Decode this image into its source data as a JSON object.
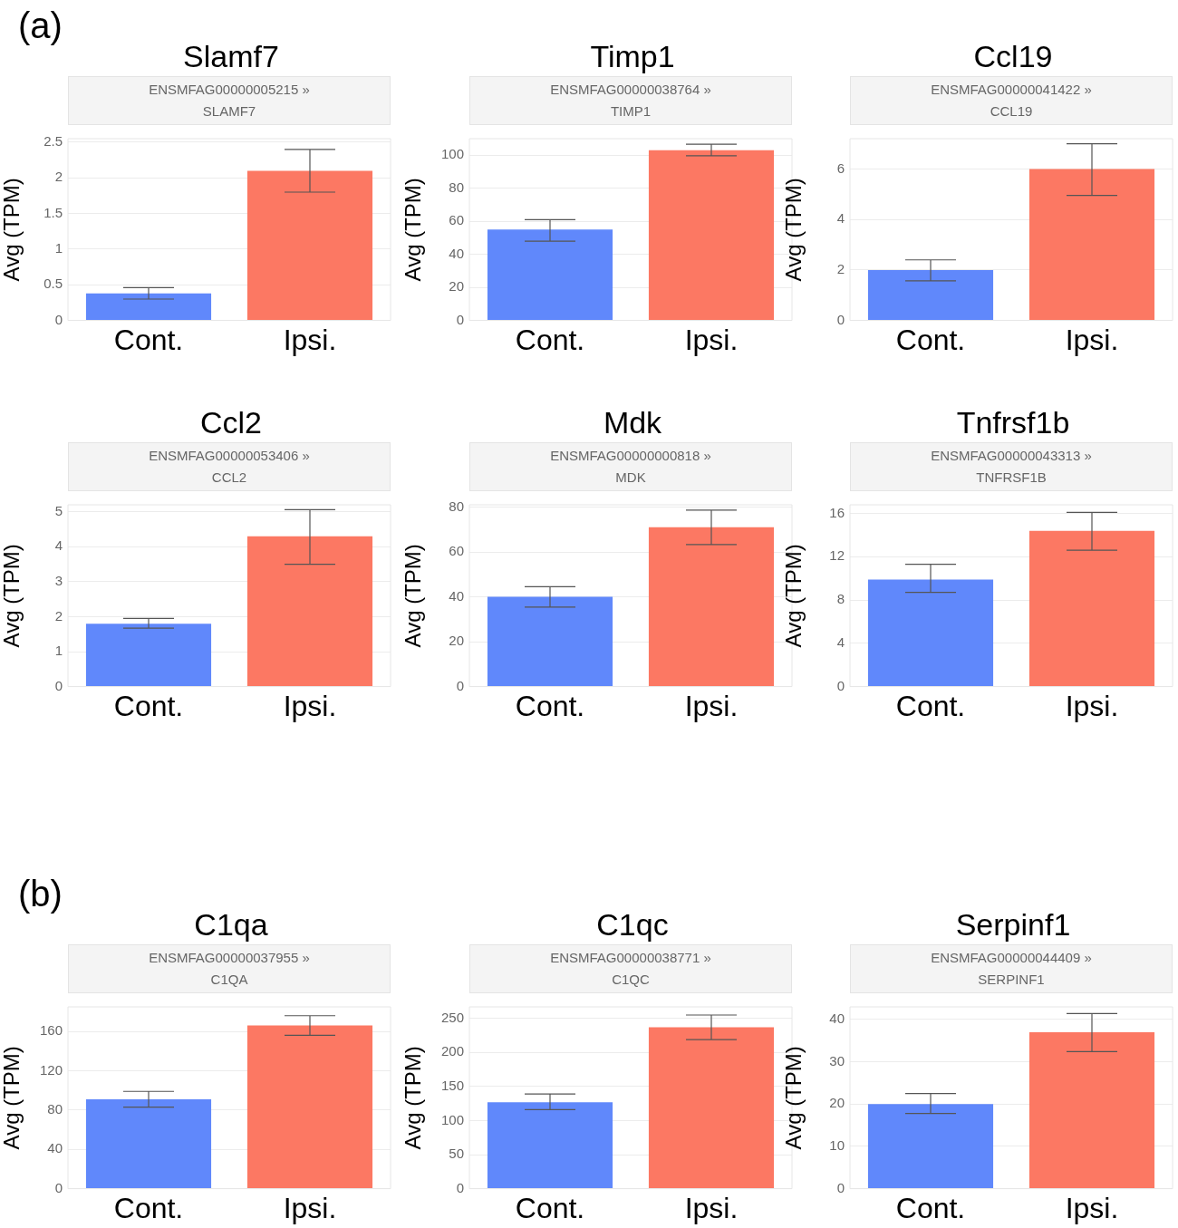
{
  "chart_data": [
    {
      "type": "bar",
      "title": "Slamf7",
      "subtitle": "ENSMFAG00000005215 »\nSLAMF7",
      "ylabel": "Avg (TPM)",
      "annotations": [
        "(a)"
      ],
      "categories": [
        "Cont.",
        "Ipsi."
      ],
      "values": [
        0.38,
        2.1
      ],
      "errors": [
        [
          0.3,
          0.46
        ],
        [
          1.8,
          2.4
        ]
      ],
      "colors": [
        "#6088fb",
        "#fc7863"
      ],
      "ylim": [
        0,
        2.55
      ],
      "yticks": [
        0,
        0.5,
        1,
        1.5,
        2,
        2.5
      ],
      "grid": "y",
      "legend": false
    },
    {
      "type": "bar",
      "title": "Timp1",
      "subtitle": "ENSMFAG00000038764 »\nTIMP1",
      "ylabel": "Avg (TPM)",
      "categories": [
        "Cont.",
        "Ipsi."
      ],
      "values": [
        55,
        103
      ],
      "errors": [
        [
          48,
          61
        ],
        [
          99.6,
          106.6
        ]
      ],
      "colors": [
        "#6088fb",
        "#fc7863"
      ],
      "ylim": [
        0,
        110
      ],
      "yticks": [
        0,
        20,
        40,
        60,
        80,
        100
      ],
      "grid": "y",
      "legend": false
    },
    {
      "type": "bar",
      "title": "Ccl19",
      "subtitle": "ENSMFAG00000041422 »\nCCL19",
      "ylabel": "Avg (TPM)",
      "categories": [
        "Cont.",
        "Ipsi."
      ],
      "values": [
        2.0,
        6.0
      ],
      "errors": [
        [
          1.57,
          2.4
        ],
        [
          4.95,
          7.0
        ]
      ],
      "colors": [
        "#6088fb",
        "#fc7863"
      ],
      "ylim": [
        0,
        7.2
      ],
      "yticks": [
        0,
        2,
        4,
        6
      ],
      "grid": "y",
      "legend": false
    },
    {
      "type": "bar",
      "title": "Ccl2",
      "subtitle": "ENSMFAG00000053406 »\nCCL2",
      "ylabel": "Avg (TPM)",
      "categories": [
        "Cont.",
        "Ipsi."
      ],
      "values": [
        1.8,
        4.3
      ],
      "errors": [
        [
          1.67,
          1.95
        ],
        [
          3.5,
          5.06
        ]
      ],
      "colors": [
        "#6088fb",
        "#fc7863"
      ],
      "ylim": [
        0,
        5.2
      ],
      "yticks": [
        0,
        1,
        2,
        3,
        4,
        5
      ],
      "grid": "y",
      "legend": false
    },
    {
      "type": "bar",
      "title": "Mdk",
      "subtitle": "ENSMFAG00000000818 »\nMDK",
      "ylabel": "Avg (TPM)",
      "categories": [
        "Cont.",
        "Ipsi."
      ],
      "values": [
        40,
        71
      ],
      "errors": [
        [
          35.4,
          44.5
        ],
        [
          63.3,
          78.6
        ]
      ],
      "colors": [
        "#6088fb",
        "#fc7863"
      ],
      "ylim": [
        0,
        81
      ],
      "yticks": [
        0,
        20,
        40,
        60,
        80
      ],
      "grid": "y",
      "legend": false
    },
    {
      "type": "bar",
      "title": "Tnfrsf1b",
      "subtitle": "ENSMFAG00000043313 »\nTNFRSF1B",
      "ylabel": "Avg (TPM)",
      "categories": [
        "Cont.",
        "Ipsi."
      ],
      "values": [
        9.9,
        14.4
      ],
      "errors": [
        [
          8.7,
          11.3
        ],
        [
          12.6,
          16.1
        ]
      ],
      "colors": [
        "#6088fb",
        "#fc7863"
      ],
      "ylim": [
        0,
        16.8
      ],
      "yticks": [
        0,
        4,
        8,
        12,
        16
      ],
      "grid": "y",
      "legend": false
    },
    {
      "type": "bar",
      "title": "C1qa",
      "subtitle": "ENSMFAG00000037955 »\nC1QA",
      "ylabel": "Avg (TPM)",
      "annotations": [
        "(b)"
      ],
      "categories": [
        "Cont.",
        "Ipsi."
      ],
      "values": [
        91,
        166
      ],
      "errors": [
        [
          83,
          99
        ],
        [
          156,
          176
        ]
      ],
      "colors": [
        "#6088fb",
        "#fc7863"
      ],
      "ylim": [
        0,
        185
      ],
      "yticks": [
        0,
        40,
        80,
        120,
        160
      ],
      "grid": "y",
      "legend": false
    },
    {
      "type": "bar",
      "title": "C1qc",
      "subtitle": "ENSMFAG00000038771 »\nC1QC",
      "ylabel": "Avg (TPM)",
      "categories": [
        "Cont.",
        "Ipsi."
      ],
      "values": [
        127,
        237
      ],
      "errors": [
        [
          116,
          139
        ],
        [
          219,
          255
        ]
      ],
      "colors": [
        "#6088fb",
        "#fc7863"
      ],
      "ylim": [
        0,
        267
      ],
      "yticks": [
        0,
        50,
        100,
        150,
        200,
        250
      ],
      "grid": "y",
      "legend": false
    },
    {
      "type": "bar",
      "title": "Serpinf1",
      "subtitle": "ENSMFAG00000044409 »\nSERPINF1",
      "ylabel": "Avg (TPM)",
      "categories": [
        "Cont.",
        "Ipsi."
      ],
      "values": [
        20,
        37
      ],
      "errors": [
        [
          17.8,
          22.5
        ],
        [
          32.4,
          41.4
        ]
      ],
      "colors": [
        "#6088fb",
        "#fc7863"
      ],
      "ylim": [
        0,
        43
      ],
      "yticks": [
        0,
        10,
        20,
        30,
        40
      ],
      "grid": "y",
      "legend": false
    }
  ]
}
